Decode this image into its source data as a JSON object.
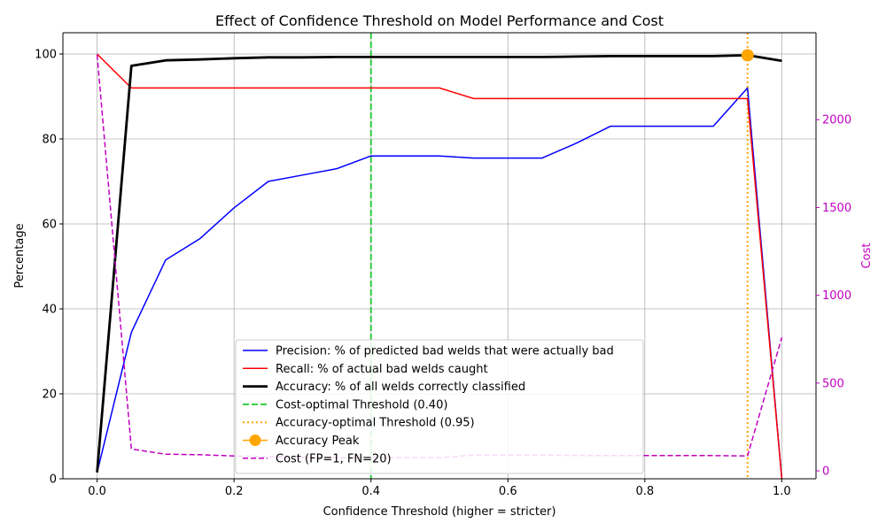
{
  "chart_data": {
    "type": "line",
    "title": "Effect of Confidence Threshold on Model Performance and Cost",
    "xlabel": "Confidence Threshold (higher = stricter)",
    "ylabel": "Percentage",
    "y2label": "Cost",
    "xlim": [
      -0.05,
      1.05
    ],
    "ylim": [
      0,
      105
    ],
    "y2lim": [
      -45,
      2495
    ],
    "xticks": [
      0.0,
      0.2,
      0.4,
      0.6,
      0.8,
      1.0
    ],
    "xtick_labels": [
      "0.0",
      "0.2",
      "0.4",
      "0.6",
      "0.8",
      "1.0"
    ],
    "yticks": [
      0,
      20,
      40,
      60,
      80,
      100
    ],
    "y2ticks": [
      0,
      500,
      1000,
      1500,
      2000
    ],
    "grid": true,
    "legend_position": "lower center",
    "colors": {
      "precision": "#0000ff",
      "recall": "#ff0000",
      "accuracy": "#000000",
      "cost_optimal": "#2ecc40",
      "accuracy_optimal": "#ffa500",
      "peak": "#ffa500",
      "cost": "#c000c0",
      "right_axis": "#c000c0"
    },
    "series": [
      {
        "name": "Precision: % of predicted bad welds that were actually bad",
        "axis": "left",
        "style": "solid",
        "x": [
          0.0,
          0.05,
          0.1,
          0.15,
          0.2,
          0.25,
          0.3,
          0.35,
          0.4,
          0.45,
          0.5,
          0.55,
          0.6,
          0.65,
          0.7,
          0.75,
          0.8,
          0.85,
          0.9,
          0.95,
          1.0
        ],
        "values": [
          1.5,
          34.5,
          51.5,
          56.5,
          63.8,
          70.0,
          71.5,
          73.0,
          76.0,
          76.0,
          76.0,
          75.5,
          75.5,
          75.5,
          79.0,
          83.0,
          83.0,
          83.0,
          83.0,
          92.0,
          0.0
        ]
      },
      {
        "name": "Recall: % of actual bad welds caught",
        "axis": "left",
        "style": "solid",
        "x": [
          0.0,
          0.05,
          0.1,
          0.15,
          0.2,
          0.25,
          0.3,
          0.35,
          0.4,
          0.45,
          0.5,
          0.55,
          0.6,
          0.65,
          0.7,
          0.75,
          0.8,
          0.85,
          0.9,
          0.95,
          1.0
        ],
        "values": [
          100.0,
          92.0,
          92.0,
          92.0,
          92.0,
          92.0,
          92.0,
          92.0,
          92.0,
          92.0,
          92.0,
          89.5,
          89.5,
          89.5,
          89.5,
          89.5,
          89.5,
          89.5,
          89.5,
          89.5,
          0.0
        ]
      },
      {
        "name": "Accuracy: % of all welds correctly classified",
        "axis": "left",
        "style": "thick",
        "x": [
          0.0,
          0.05,
          0.1,
          0.15,
          0.2,
          0.25,
          0.3,
          0.35,
          0.4,
          0.45,
          0.5,
          0.55,
          0.6,
          0.65,
          0.7,
          0.75,
          0.8,
          0.85,
          0.9,
          0.95,
          1.0
        ],
        "values": [
          1.5,
          97.2,
          98.5,
          98.7,
          99.0,
          99.2,
          99.2,
          99.3,
          99.3,
          99.3,
          99.3,
          99.3,
          99.3,
          99.3,
          99.4,
          99.5,
          99.5,
          99.5,
          99.5,
          99.7,
          98.4
        ]
      },
      {
        "name": "Cost (FP=1, FN=20)",
        "axis": "right",
        "style": "dashed",
        "x": [
          0.0,
          0.05,
          0.1,
          0.15,
          0.2,
          0.25,
          0.3,
          0.35,
          0.4,
          0.45,
          0.5,
          0.55,
          0.6,
          0.65,
          0.7,
          0.75,
          0.8,
          0.85,
          0.9,
          0.95,
          1.0
        ],
        "values": [
          2370,
          125,
          95,
          92,
          85,
          80,
          78,
          75,
          75,
          75,
          75,
          90,
          90,
          90,
          88,
          87,
          87,
          87,
          87,
          85,
          760
        ]
      }
    ],
    "threshold_lines": [
      {
        "name": "Cost-optimal Threshold (0.40)",
        "x": 0.4,
        "style": "dashed"
      },
      {
        "name": "Accuracy-optimal Threshold (0.95)",
        "x": 0.95,
        "style": "dotted"
      }
    ],
    "peak_marker": {
      "name": "Accuracy Peak",
      "x": 0.95,
      "y": 99.7
    },
    "legend_order": [
      "Precision: % of predicted bad welds that were actually bad",
      "Recall: % of actual bad welds caught",
      "Accuracy: % of all welds correctly classified",
      "Cost-optimal Threshold (0.40)",
      "Accuracy-optimal Threshold (0.95)",
      "Accuracy Peak",
      "Cost (FP=1, FN=20)"
    ]
  }
}
